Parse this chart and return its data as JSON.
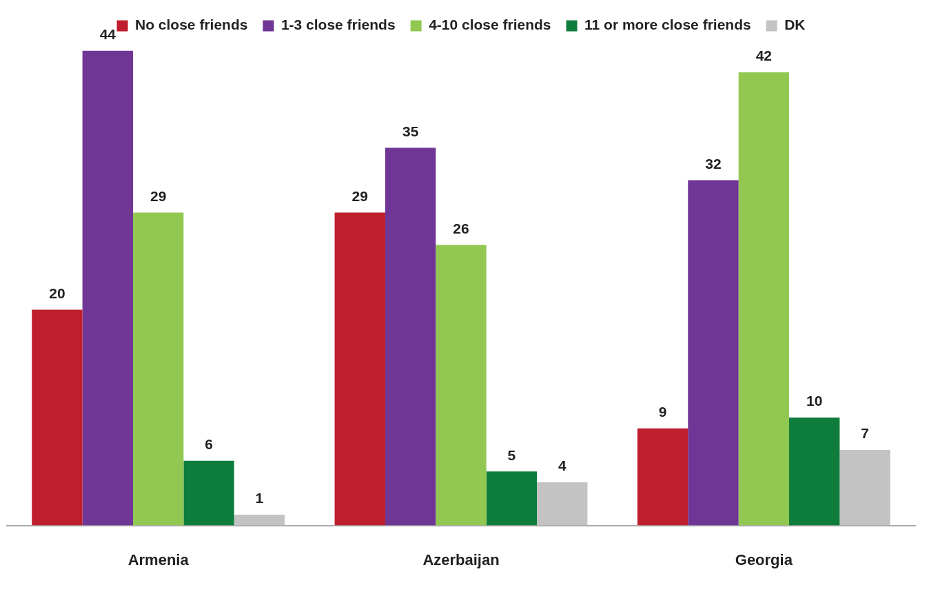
{
  "chart_data": {
    "type": "bar",
    "categories": [
      "Armenia",
      "Azerbaijan",
      "Georgia"
    ],
    "series": [
      {
        "name": "No close friends",
        "color": "#be1e2d",
        "values": [
          20,
          29,
          9
        ]
      },
      {
        "name": "1-3 close friends",
        "color": "#6f3696",
        "values": [
          44,
          35,
          32
        ]
      },
      {
        "name": "4-10 close friends",
        "color": "#92c851",
        "values": [
          29,
          26,
          42
        ]
      },
      {
        "name": "11 or more close friends",
        "color": "#0e7d3c",
        "values": [
          6,
          5,
          10
        ]
      },
      {
        "name": "DK",
        "color": "#c3c3c3",
        "values": [
          1,
          4,
          7
        ]
      }
    ],
    "data_labels": true,
    "legend": "top",
    "grid": false,
    "tick_labels": "x"
  }
}
